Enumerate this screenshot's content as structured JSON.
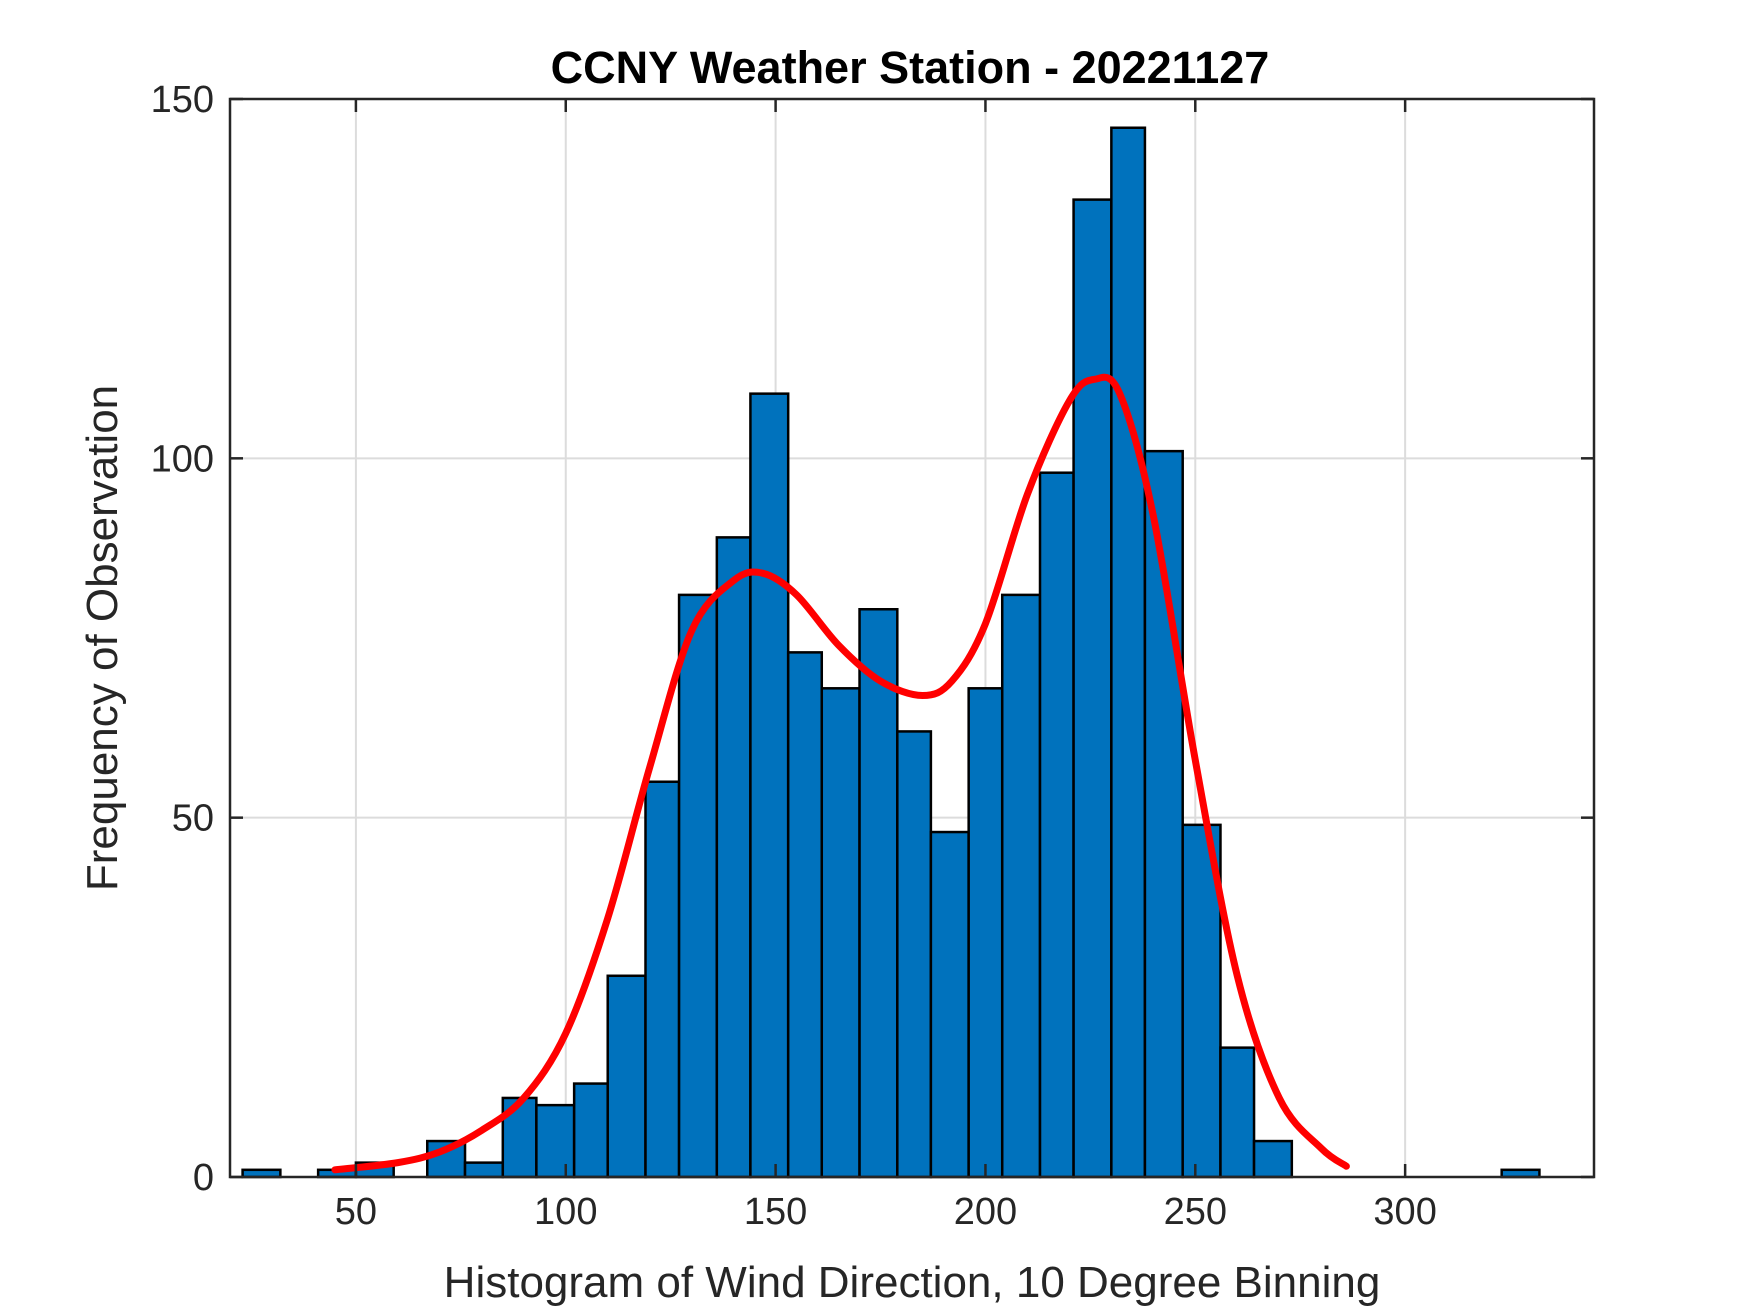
{
  "chart_data": {
    "type": "bar",
    "title": "CCNY Weather Station - 20221127",
    "xlabel": "Histogram of Wind Direction, 10 Degree Binning",
    "ylabel": "Frequency of Observation",
    "xlim": [
      20,
      345
    ],
    "ylim": [
      0,
      150
    ],
    "xticks": [
      50,
      100,
      150,
      200,
      250,
      300
    ],
    "yticks": [
      0,
      50,
      100,
      150
    ],
    "grid": true,
    "bar_color": "#0072BD",
    "bar_edge_color": "#000000",
    "curve_color": "#FF0000",
    "bins": [
      {
        "left": 23,
        "right": 32,
        "value": 1
      },
      {
        "left": 41,
        "right": 50,
        "value": 1
      },
      {
        "left": 50,
        "right": 59,
        "value": 2
      },
      {
        "left": 67,
        "right": 76,
        "value": 5
      },
      {
        "left": 76,
        "right": 85,
        "value": 2
      },
      {
        "left": 85,
        "right": 93,
        "value": 11
      },
      {
        "left": 93,
        "right": 102,
        "value": 10
      },
      {
        "left": 102,
        "right": 110,
        "value": 13
      },
      {
        "left": 110,
        "right": 119,
        "value": 28
      },
      {
        "left": 119,
        "right": 127,
        "value": 55
      },
      {
        "left": 127,
        "right": 136,
        "value": 81
      },
      {
        "left": 136,
        "right": 144,
        "value": 89
      },
      {
        "left": 144,
        "right": 153,
        "value": 109
      },
      {
        "left": 153,
        "right": 161,
        "value": 73
      },
      {
        "left": 161,
        "right": 170,
        "value": 68
      },
      {
        "left": 170,
        "right": 179,
        "value": 79
      },
      {
        "left": 179,
        "right": 187,
        "value": 62
      },
      {
        "left": 187,
        "right": 196,
        "value": 48
      },
      {
        "left": 196,
        "right": 204,
        "value": 68
      },
      {
        "left": 204,
        "right": 213,
        "value": 81
      },
      {
        "left": 213,
        "right": 221,
        "value": 98
      },
      {
        "left": 221,
        "right": 230,
        "value": 136
      },
      {
        "left": 230,
        "right": 238,
        "value": 146
      },
      {
        "left": 238,
        "right": 247,
        "value": 101
      },
      {
        "left": 247,
        "right": 256,
        "value": 49
      },
      {
        "left": 256,
        "right": 264,
        "value": 18
      },
      {
        "left": 264,
        "right": 273,
        "value": 5
      },
      {
        "left": 323,
        "right": 332,
        "value": 1
      }
    ],
    "fit_curve": {
      "name": "fitted density",
      "x": [
        45,
        60,
        70,
        80,
        90,
        100,
        110,
        120,
        130,
        140,
        147,
        155,
        165,
        175,
        185,
        192,
        200,
        210,
        220,
        226,
        232,
        240,
        250,
        260,
        270,
        280,
        286
      ],
      "y": [
        1,
        2,
        3.5,
        6.5,
        11,
        20,
        36,
        57,
        76,
        83,
        84,
        81,
        74,
        69,
        67,
        69,
        77,
        95,
        108,
        111,
        109,
        92,
        58,
        28,
        11,
        4,
        1.5
      ]
    }
  }
}
